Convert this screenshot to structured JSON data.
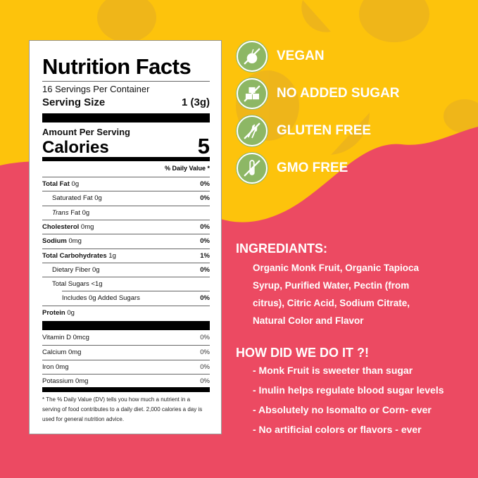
{
  "colors": {
    "yellow": "#FDC30C",
    "pink": "#EC4A62",
    "badge_green": "#8DB765"
  },
  "nutrition": {
    "title": "Nutrition Facts",
    "servings": "16 Servings Per Container",
    "serving_size_label": "Serving Size",
    "serving_size_value": "1 (3g)",
    "amount_per_serving": "Amount Per Serving",
    "calories_label": "Calories",
    "calories_value": "5",
    "dv_header": "% Daily Value *",
    "rows": [
      {
        "bold": "Total Fat",
        "amount": "0g",
        "dv": "0%"
      },
      {
        "bold": "",
        "amount": "Saturated Fat 0g",
        "dv": "0%"
      },
      {
        "italic": "Trans",
        "amount": "Fat 0g",
        "dv": ""
      },
      {
        "bold": "Cholesterol",
        "amount": "0mg",
        "dv": "0%"
      },
      {
        "bold": "Sodium",
        "amount": "0mg",
        "dv": "0%"
      },
      {
        "bold": "Total Carbohydrates",
        "amount": "1g",
        "dv": "1%"
      },
      {
        "bold": "",
        "amount": "Dietary Fiber 0g",
        "dv": "0%"
      },
      {
        "bold": "",
        "amount": "Total Sugars <1g",
        "dv": ""
      },
      {
        "bold": "",
        "amount": "Includes 0g Added Sugars",
        "dv": "0%"
      },
      {
        "bold": "Protein",
        "amount": "0g",
        "dv": ""
      }
    ],
    "vitamins": [
      {
        "label": "Vitamin D 0mcg",
        "dv": "0%"
      },
      {
        "label": "Calcium 0mg",
        "dv": "0%"
      },
      {
        "label": "Iron 0mg",
        "dv": "0%"
      },
      {
        "label": "Potassium 0mg",
        "dv": "0%"
      }
    ],
    "footnote": "* The % Daily Value (DV) tells you how much a nutrient in a serving of food contributes to a daily diet. 2,000 calories a day is used for general nutrition advice."
  },
  "badges": [
    {
      "label": "VEGAN",
      "icon": "no-apple-icon"
    },
    {
      "label": "NO  ADDED SUGAR",
      "icon": "no-sugar-cubes-icon"
    },
    {
      "label": "GLUTEN FREE",
      "icon": "no-wheat-icon"
    },
    {
      "label": "GMO FREE",
      "icon": "no-test-tube-icon"
    }
  ],
  "ingredients": {
    "heading": "INGREDIANTS:",
    "lines": [
      "Organic Monk Fruit, Organic Tapioca",
      "Syrup, Purified Water, Pectin (from",
      "citrus), Citric Acid, Sodium Citrate,",
      "Natural Color and Flavor"
    ]
  },
  "how": {
    "heading": "HOW DID WE DO IT ?!",
    "bullets": [
      "- Monk Fruit is sweeter than sugar",
      "- Inulin helps regulate blood sugar levels",
      "- Absolutely no Isomalto or Corn- ever",
      "- No artificial colors or flavors - ever"
    ]
  }
}
